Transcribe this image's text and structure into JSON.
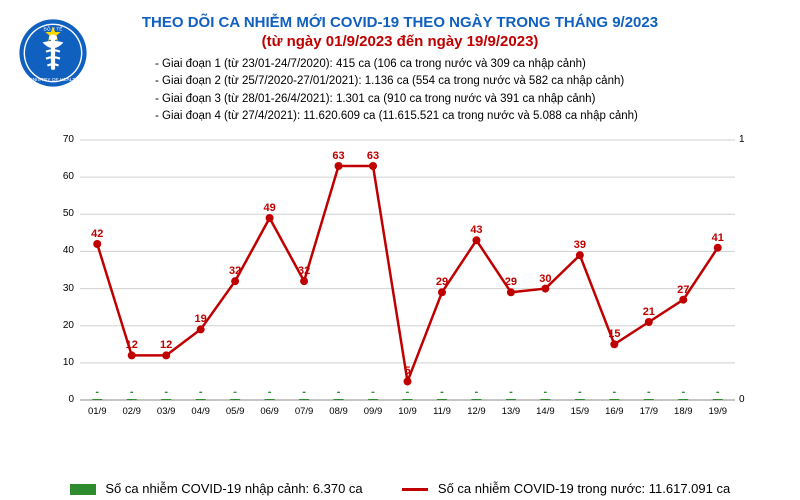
{
  "header": {
    "line1": "THEO DÕI CA NHIỄM MỚI COVID-19 THEO NGÀY TRONG THÁNG 9/2023",
    "line2": "(từ ngày 01/9/2023 đến ngày 19/9/2023)"
  },
  "phases": [
    "- Giai đoạn 1 (từ 23/01-24/7/2020): 415 ca (106 ca trong nước và 309 ca nhập cảnh)",
    "- Giai đoạn 2 (từ 25/7/2020-27/01/2021): 1.136 ca (554 ca trong nước và 582 ca nhập cảnh)",
    "- Giai đoạn 3 (từ 28/01-26/4/2021): 1.301 ca (910 ca trong nước và 391 ca nhập cảnh)",
    "- Giai đoạn 4 (từ 27/4/2021): 11.620.609 ca (11.615.521 ca trong nước và 5.088 ca nhập cảnh)"
  ],
  "chart": {
    "type": "combo-bar-line",
    "categories": [
      "01/9",
      "02/9",
      "03/9",
      "04/9",
      "05/9",
      "06/9",
      "07/9",
      "08/9",
      "09/9",
      "10/9",
      "11/9",
      "12/9",
      "13/9",
      "14/9",
      "15/9",
      "16/9",
      "17/9",
      "18/9",
      "19/9"
    ],
    "line_values": [
      42,
      12,
      12,
      19,
      32,
      49,
      32,
      63,
      63,
      5,
      29,
      43,
      29,
      30,
      39,
      15,
      21,
      27,
      41
    ],
    "line_labels": [
      "42",
      "12",
      "12",
      "19",
      "32",
      "49",
      "32",
      "63",
      "63",
      "5",
      "29",
      "43",
      "29",
      "30",
      "39",
      "15",
      "21",
      "27",
      "41"
    ],
    "bar_values": [
      0,
      0,
      0,
      0,
      0,
      0,
      0,
      0,
      0,
      0,
      0,
      0,
      0,
      0,
      0,
      0,
      0,
      0,
      0
    ],
    "bar_labels": [
      "-",
      "-",
      "-",
      "-",
      "-",
      "-",
      "-",
      "-",
      "-",
      "-",
      "-",
      "-",
      "-",
      "-",
      "-",
      "-",
      "-",
      "-",
      "-"
    ],
    "left_axis": {
      "min": 0,
      "max": 70,
      "step": 10
    },
    "right_axis": {
      "min": 0,
      "max": 1,
      "step": 1
    },
    "colors": {
      "line": "#c00000",
      "bar": "#2e8b2e",
      "grid": "#d0d0d0",
      "title": "#1060c0",
      "subtitle": "#c00000"
    },
    "line_width": 2.5,
    "marker_size": 4,
    "plot_bg": "#ffffff"
  },
  "legend": {
    "bar_label": "Số ca nhiễm COVID-19 nhập cảnh: 6.370 ca",
    "line_label": "Số ca nhiễm COVID-19 trong nước: 11.617.091 ca"
  }
}
